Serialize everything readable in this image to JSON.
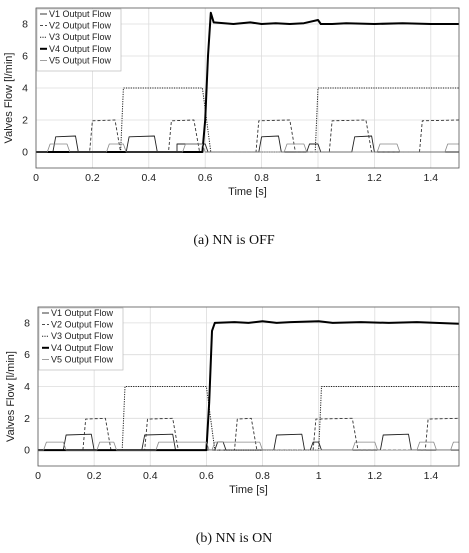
{
  "chart_data": [
    {
      "type": "line",
      "caption": "(a) NN is OFF",
      "xlabel": "Time [s]",
      "ylabel": "Valves Flow [l/min]",
      "xlim": [
        0,
        1.5
      ],
      "ylim": [
        -1,
        9
      ],
      "xticks": [
        "0",
        "0.2",
        "0.4",
        "0.6",
        "0.8",
        "1",
        "1.2",
        "1.4"
      ],
      "yticks": [
        "0",
        "2",
        "4",
        "6",
        "8"
      ],
      "grid": true,
      "legend_position": "top-left",
      "series": [
        {
          "name": "V1 Output Flow",
          "style": "thin-solid",
          "points": [
            [
              0,
              0
            ],
            [
              0.06,
              0
            ],
            [
              0.07,
              0.95
            ],
            [
              0.14,
              1
            ],
            [
              0.15,
              0
            ],
            [
              0.16,
              0
            ],
            [
              0.32,
              0
            ],
            [
              0.33,
              0.95
            ],
            [
              0.42,
              1
            ],
            [
              0.43,
              0
            ],
            [
              0.5,
              0
            ],
            [
              0.5,
              0.5
            ],
            [
              0.6,
              0.5
            ],
            [
              0.61,
              0
            ],
            [
              0.79,
              0
            ],
            [
              0.8,
              0.95
            ],
            [
              0.86,
              1
            ],
            [
              0.87,
              0
            ],
            [
              0.96,
              0
            ],
            [
              0.97,
              0.5
            ],
            [
              1.0,
              0.5
            ],
            [
              1.01,
              0
            ],
            [
              1.12,
              0
            ],
            [
              1.13,
              0.95
            ],
            [
              1.19,
              1
            ],
            [
              1.2,
              0
            ],
            [
              1.5,
              0
            ]
          ]
        },
        {
          "name": "V2 Output Flow",
          "style": "dashed",
          "points": [
            [
              0,
              0
            ],
            [
              0.19,
              0
            ],
            [
              0.2,
              1.95
            ],
            [
              0.28,
              2
            ],
            [
              0.3,
              0
            ],
            [
              0.33,
              0
            ],
            [
              0.47,
              0
            ],
            [
              0.48,
              1.95
            ],
            [
              0.56,
              2
            ],
            [
              0.58,
              0
            ],
            [
              0.78,
              0
            ],
            [
              0.79,
              1.95
            ],
            [
              0.9,
              2
            ],
            [
              0.92,
              0
            ],
            [
              1.04,
              0
            ],
            [
              1.05,
              1.95
            ],
            [
              1.17,
              2
            ],
            [
              1.19,
              0
            ],
            [
              1.36,
              0
            ],
            [
              1.37,
              1.95
            ],
            [
              1.5,
              2
            ]
          ]
        },
        {
          "name": "V3 Output Flow",
          "style": "dotted",
          "points": [
            [
              0,
              0
            ],
            [
              0.3,
              0
            ],
            [
              0.31,
              4
            ],
            [
              0.59,
              4
            ],
            [
              0.62,
              0
            ],
            [
              0.99,
              0
            ],
            [
              1.0,
              4
            ],
            [
              1.5,
              4
            ]
          ]
        },
        {
          "name": "V4 Output Flow",
          "style": "thick-solid",
          "points": [
            [
              0,
              0
            ],
            [
              0.59,
              0
            ],
            [
              0.6,
              2
            ],
            [
              0.61,
              6
            ],
            [
              0.62,
              8.7
            ],
            [
              0.63,
              8.1
            ],
            [
              0.7,
              8.0
            ],
            [
              0.76,
              8.1
            ],
            [
              0.8,
              8.0
            ],
            [
              0.85,
              8.05
            ],
            [
              0.9,
              8.0
            ],
            [
              0.95,
              8.05
            ],
            [
              1.0,
              8.25
            ],
            [
              1.01,
              8.0
            ],
            [
              1.05,
              8.0
            ],
            [
              1.1,
              8.05
            ],
            [
              1.2,
              8.0
            ],
            [
              1.3,
              8.05
            ],
            [
              1.4,
              8.0
            ],
            [
              1.5,
              8.0
            ]
          ]
        },
        {
          "name": "V5 Output Flow",
          "style": "light-solid",
          "points": [
            [
              0,
              0
            ],
            [
              0.04,
              0
            ],
            [
              0.05,
              0.5
            ],
            [
              0.11,
              0.5
            ],
            [
              0.12,
              0
            ],
            [
              0.25,
              0
            ],
            [
              0.26,
              0.5
            ],
            [
              0.31,
              0.5
            ],
            [
              0.32,
              0
            ],
            [
              0.52,
              0
            ],
            [
              0.53,
              0.5
            ],
            [
              0.59,
              0.5
            ],
            [
              0.6,
              0
            ],
            [
              0.88,
              0
            ],
            [
              0.89,
              0.5
            ],
            [
              0.95,
              0.5
            ],
            [
              0.96,
              0
            ],
            [
              1.21,
              0
            ],
            [
              1.22,
              0.5
            ],
            [
              1.28,
              0.5
            ],
            [
              1.29,
              0
            ],
            [
              1.45,
              0
            ],
            [
              1.46,
              0.5
            ],
            [
              1.5,
              0.5
            ]
          ]
        }
      ]
    },
    {
      "type": "line",
      "caption": "(b) NN is ON",
      "xlabel": "Time [s]",
      "ylabel": "Valves Flow [l/min]",
      "xlim": [
        0,
        1.5
      ],
      "ylim": [
        -1,
        9
      ],
      "xticks": [
        "0",
        "0.2",
        "0.4",
        "0.6",
        "0.8",
        "1",
        "1.2",
        "1.4"
      ],
      "yticks": [
        "0",
        "2",
        "4",
        "6",
        "8"
      ],
      "grid": true,
      "legend_position": "top-left",
      "series": [
        {
          "name": "V1 Output Flow",
          "style": "thin-solid",
          "points": [
            [
              0,
              0
            ],
            [
              0.09,
              0
            ],
            [
              0.1,
              0.95
            ],
            [
              0.19,
              1
            ],
            [
              0.2,
              0
            ],
            [
              0.37,
              0
            ],
            [
              0.38,
              0.95
            ],
            [
              0.48,
              1
            ],
            [
              0.49,
              0
            ],
            [
              0.63,
              0
            ],
            [
              0.64,
              0.5
            ],
            [
              0.66,
              0.5
            ],
            [
              0.67,
              0
            ],
            [
              0.84,
              0
            ],
            [
              0.85,
              0.95
            ],
            [
              0.94,
              1
            ],
            [
              0.95,
              0
            ],
            [
              0.97,
              0
            ],
            [
              0.98,
              0.5
            ],
            [
              1.0,
              0.5
            ],
            [
              1.01,
              0
            ],
            [
              1.22,
              0
            ],
            [
              1.23,
              0.95
            ],
            [
              1.32,
              1
            ],
            [
              1.33,
              0
            ],
            [
              1.5,
              0
            ]
          ]
        },
        {
          "name": "V2 Output Flow",
          "style": "dashed",
          "points": [
            [
              0,
              0
            ],
            [
              0.16,
              0
            ],
            [
              0.17,
              1.95
            ],
            [
              0.24,
              2
            ],
            [
              0.26,
              0
            ],
            [
              0.38,
              0
            ],
            [
              0.39,
              1.95
            ],
            [
              0.48,
              2
            ],
            [
              0.5,
              0
            ],
            [
              0.7,
              0
            ],
            [
              0.71,
              1.95
            ],
            [
              0.76,
              2
            ],
            [
              0.78,
              0
            ],
            [
              0.98,
              0
            ],
            [
              0.99,
              1.95
            ],
            [
              1.12,
              2
            ],
            [
              1.14,
              0
            ],
            [
              1.38,
              0
            ],
            [
              1.39,
              1.95
            ],
            [
              1.5,
              2
            ]
          ]
        },
        {
          "name": "V3 Output Flow",
          "style": "dotted",
          "points": [
            [
              0,
              0
            ],
            [
              0.3,
              0
            ],
            [
              0.31,
              4
            ],
            [
              0.6,
              4
            ],
            [
              0.63,
              0
            ],
            [
              1.0,
              0
            ],
            [
              1.01,
              4
            ],
            [
              1.5,
              4
            ]
          ]
        },
        {
          "name": "V4 Output Flow",
          "style": "thick-solid",
          "points": [
            [
              0,
              0
            ],
            [
              0.6,
              0
            ],
            [
              0.61,
              3
            ],
            [
              0.62,
              7.5
            ],
            [
              0.63,
              8.0
            ],
            [
              0.7,
              8.05
            ],
            [
              0.75,
              8.0
            ],
            [
              0.8,
              8.1
            ],
            [
              0.85,
              8.0
            ],
            [
              0.9,
              8.05
            ],
            [
              1.0,
              8.1
            ],
            [
              1.05,
              8.0
            ],
            [
              1.15,
              8.05
            ],
            [
              1.25,
              8.0
            ],
            [
              1.35,
              8.05
            ],
            [
              1.5,
              7.95
            ]
          ]
        },
        {
          "name": "V5 Output Flow",
          "style": "light-solid",
          "points": [
            [
              0,
              0
            ],
            [
              0.02,
              0
            ],
            [
              0.03,
              0.5
            ],
            [
              0.09,
              0.5
            ],
            [
              0.1,
              0
            ],
            [
              0.21,
              0
            ],
            [
              0.22,
              0.5
            ],
            [
              0.27,
              0.5
            ],
            [
              0.28,
              0
            ],
            [
              0.42,
              0
            ],
            [
              0.43,
              0.5
            ],
            [
              0.6,
              0.5
            ],
            [
              0.61,
              0
            ],
            [
              0.62,
              0
            ],
            [
              0.63,
              0.5
            ],
            [
              0.79,
              0.5
            ],
            [
              0.8,
              0
            ],
            [
              1.12,
              0
            ],
            [
              1.13,
              0.5
            ],
            [
              1.2,
              0.5
            ],
            [
              1.21,
              0
            ],
            [
              1.35,
              0
            ],
            [
              1.36,
              0.5
            ],
            [
              1.41,
              0.5
            ],
            [
              1.42,
              0
            ],
            [
              1.47,
              0
            ],
            [
              1.48,
              0.5
            ],
            [
              1.5,
              0.5
            ]
          ]
        }
      ]
    }
  ]
}
